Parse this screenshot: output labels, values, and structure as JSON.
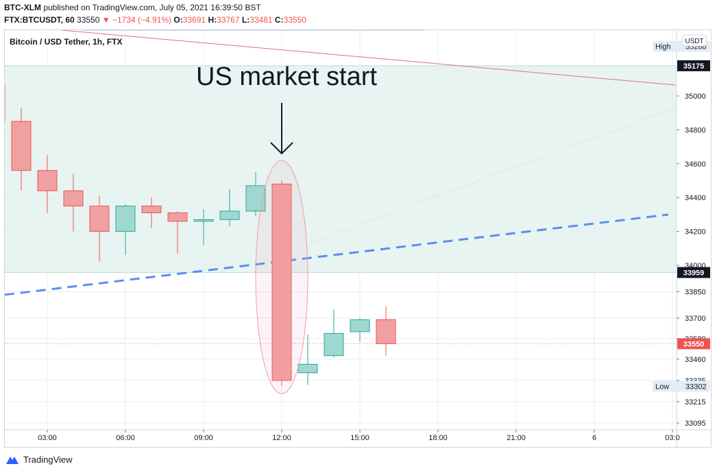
{
  "header": {
    "publisher": "BTC-XLM",
    "published_text": " published on TradingView.com, July 05, 2021 16:39:50 BST",
    "symbol_line_label": "FTX:BTCUSDT, 60",
    "last": "33550",
    "change": "−1734 (−4.91%)",
    "o_label": "O:",
    "o": "33691",
    "h_label": "H:",
    "h": "33767",
    "l_label": "L:",
    "l": "33481",
    "c_label": "C:",
    "c": "33550"
  },
  "chart_title": "Bitcoin / USD Tether, 1h, FTX",
  "currency_badge": "USDT",
  "annotation": "US market start",
  "price_labels": {
    "high": {
      "text": "High",
      "value": "35288"
    },
    "low": {
      "text": "Low",
      "value": "33302"
    },
    "zone_top": "35175",
    "zone_bottom": "33959",
    "last": "33550"
  },
  "colors": {
    "up": "#26a69a",
    "down": "#ef5350",
    "up_fill": "#9fd8d0",
    "down_fill": "#f0a0a0",
    "zone": "#e8f4f1",
    "trend_dashed": "#5b8def",
    "trend_pink": "#e06b8c"
  },
  "footer": {
    "brand": "TradingView",
    "logo_icon": "tradingview-logo-icon"
  },
  "chart_data": {
    "type": "candlestick",
    "title": "Bitcoin / USD Tether, 1h, FTX",
    "x_ticks": [
      "03:00",
      "06:00",
      "09:00",
      "12:00",
      "15:00",
      "18:00",
      "21:00",
      "6",
      "03:0"
    ],
    "y_ticks_upper": [
      "35000",
      "34800",
      "34600",
      "34400",
      "34200",
      "34000"
    ],
    "y_ticks_lower": [
      "33850",
      "33700",
      "33580",
      "33460",
      "33335",
      "33215",
      "33095"
    ],
    "candles": [
      {
        "time": "01:00",
        "o": 35060,
        "h": 35160,
        "l": 34840,
        "c": 34850
      },
      {
        "time": "02:00",
        "o": 34850,
        "h": 34930,
        "l": 34440,
        "c": 34560
      },
      {
        "time": "03:00",
        "o": 34560,
        "h": 34650,
        "l": 34310,
        "c": 34440
      },
      {
        "time": "04:00",
        "o": 34440,
        "h": 34540,
        "l": 34200,
        "c": 34350
      },
      {
        "time": "05:00",
        "o": 34350,
        "h": 34410,
        "l": 34020,
        "c": 34200
      },
      {
        "time": "06:00",
        "o": 34200,
        "h": 34360,
        "l": 34060,
        "c": 34350
      },
      {
        "time": "07:00",
        "o": 34350,
        "h": 34400,
        "l": 34220,
        "c": 34310
      },
      {
        "time": "08:00",
        "o": 34310,
        "h": 34320,
        "l": 34070,
        "c": 34260
      },
      {
        "time": "09:00",
        "o": 34260,
        "h": 34330,
        "l": 34120,
        "c": 34270
      },
      {
        "time": "10:00",
        "o": 34270,
        "h": 34450,
        "l": 34230,
        "c": 34320
      },
      {
        "time": "11:00",
        "o": 34320,
        "h": 34550,
        "l": 34290,
        "c": 34470
      },
      {
        "time": "12:00",
        "o": 34480,
        "h": 34500,
        "l": 33302,
        "c": 33335
      },
      {
        "time": "13:00",
        "o": 33380,
        "h": 33605,
        "l": 33310,
        "c": 33430
      },
      {
        "time": "14:00",
        "o": 33480,
        "h": 33750,
        "l": 33470,
        "c": 33610
      },
      {
        "time": "15:00",
        "o": 33620,
        "h": 33700,
        "l": 33560,
        "c": 33690
      },
      {
        "time": "16:00",
        "o": 33691,
        "h": 33767,
        "l": 33481,
        "c": 33550
      }
    ],
    "zone": {
      "top": 35175,
      "bottom": 33959
    },
    "high": 35288,
    "low": 33302,
    "last": 33550
  }
}
